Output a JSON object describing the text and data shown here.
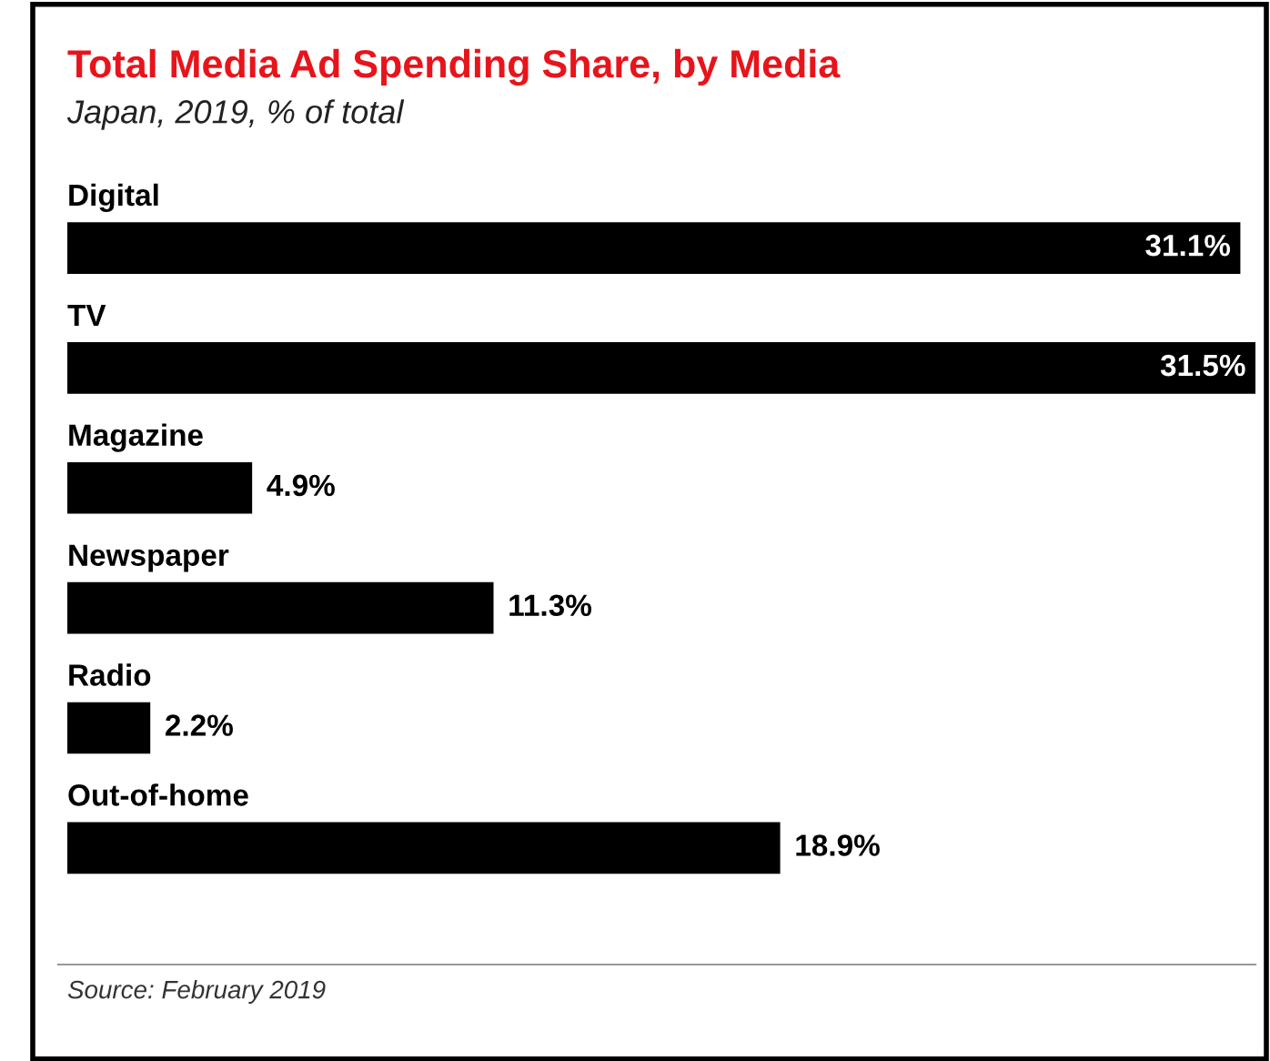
{
  "chart_data": {
    "type": "bar",
    "orientation": "horizontal",
    "title": "Total Media Ad Spending Share, by Media",
    "subtitle": "Japan, 2019, % of total",
    "categories": [
      "Digital",
      "TV",
      "Magazine",
      "Newspaper",
      "Radio",
      "Out-of-home"
    ],
    "values": [
      31.1,
      31.5,
      4.9,
      11.3,
      2.2,
      18.9
    ],
    "value_labels": [
      "31.1%",
      "31.5%",
      "4.9%",
      "11.3%",
      "2.2%",
      "18.9%"
    ],
    "color": "#000000",
    "tick_labels": false,
    "annotations": [
      "Source: February 2019"
    ]
  }
}
